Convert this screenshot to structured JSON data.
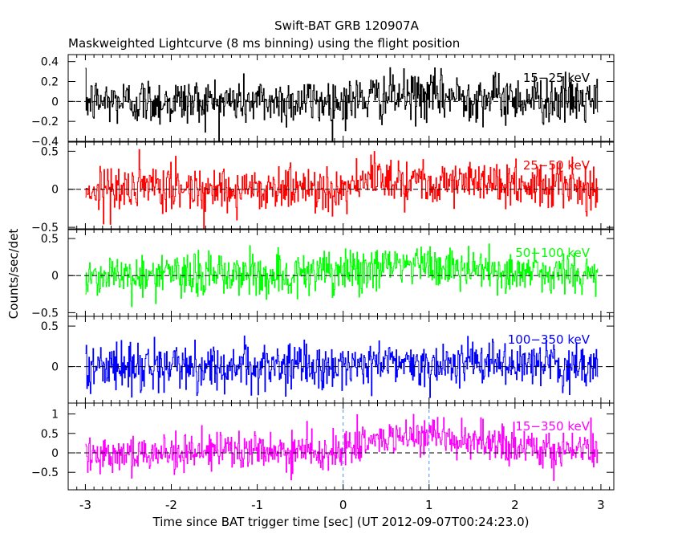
{
  "chart_data": {
    "type": "line",
    "title": "Swift-BAT GRB 120907A",
    "subtitle": "Maskweighted Lightcurve (8 ms binning) using the flight position",
    "xlabel": "Time since BAT trigger time [sec] (UT 2012-09-07T00:24:23.0)",
    "ylabel": "Counts/sec/det",
    "xlim": [
      -3.2,
      3.15
    ],
    "x_ticks": [
      -3,
      -2,
      -1,
      0,
      1,
      2,
      3
    ],
    "x_tick_labels": [
      "-3",
      "-2",
      "-1",
      "0",
      "1",
      "2",
      "3"
    ],
    "bin_width_sec": 0.008,
    "x_range_data": [
      -3.0,
      2.96
    ],
    "vertical_markers": [
      {
        "name": "T0",
        "x": 0.0,
        "color": "#4a90e2"
      },
      {
        "name": "T100 end",
        "x": 1.0,
        "color": "#4a90e2"
      }
    ],
    "panels": [
      {
        "name": "15-25 keV",
        "label": "15−25 keV",
        "color": "#000000",
        "ylim": [
          -0.4,
          0.47
        ],
        "y_ticks": [
          -0.4,
          -0.2,
          0,
          0.2,
          0.4
        ],
        "y_tick_labels": [
          "−0.4",
          "−0.2",
          "0",
          "0.2",
          "0.4"
        ],
        "noise_sigma": 0.12,
        "mean_profile": [
          {
            "x": -3.0,
            "y": 0.0
          },
          {
            "x": 0.0,
            "y": 0.0
          },
          {
            "x": 0.5,
            "y": 0.05
          },
          {
            "x": 1.5,
            "y": 0.05
          },
          {
            "x": 2.96,
            "y": 0.0
          }
        ]
      },
      {
        "name": "25-50 keV",
        "label": "25−50 keV",
        "color": "#ff0000",
        "ylim": [
          -0.52,
          0.62
        ],
        "y_ticks": [
          -0.5,
          0,
          0.5
        ],
        "y_tick_labels": [
          "−0.5",
          "0",
          "0.5"
        ],
        "noise_sigma": 0.15,
        "mean_profile": [
          {
            "x": -3.0,
            "y": 0.0
          },
          {
            "x": 0.0,
            "y": 0.02
          },
          {
            "x": 0.5,
            "y": 0.15
          },
          {
            "x": 1.0,
            "y": 0.12
          },
          {
            "x": 1.5,
            "y": 0.08
          },
          {
            "x": 2.96,
            "y": 0.02
          }
        ]
      },
      {
        "name": "50-100 keV",
        "label": "50−100 keV",
        "color": "#00ff00",
        "ylim": [
          -0.55,
          0.62
        ],
        "y_ticks": [
          -0.5,
          0,
          0.5
        ],
        "y_tick_labels": [
          "−0.5",
          "0",
          "0.5"
        ],
        "noise_sigma": 0.15,
        "mean_profile": [
          {
            "x": -3.0,
            "y": 0.0
          },
          {
            "x": 0.0,
            "y": 0.02
          },
          {
            "x": 0.5,
            "y": 0.15
          },
          {
            "x": 1.0,
            "y": 0.12
          },
          {
            "x": 1.8,
            "y": 0.06
          },
          {
            "x": 2.96,
            "y": 0.0
          }
        ]
      },
      {
        "name": "100-350 keV",
        "label": "100−350 keV",
        "color": "#0000ff",
        "ylim": [
          -0.45,
          0.62
        ],
        "y_ticks": [
          0,
          0.5
        ],
        "y_tick_labels": [
          "0",
          "0.5"
        ],
        "noise_sigma": 0.14,
        "mean_profile": [
          {
            "x": -3.0,
            "y": 0.0
          },
          {
            "x": 0.0,
            "y": 0.0
          },
          {
            "x": 0.5,
            "y": 0.05
          },
          {
            "x": 1.0,
            "y": 0.05
          },
          {
            "x": 2.96,
            "y": 0.0
          }
        ]
      },
      {
        "name": "15-350 keV",
        "label": "15−350 keV",
        "color": "#ff00ff",
        "ylim": [
          -0.95,
          1.28
        ],
        "y_ticks": [
          -0.5,
          0,
          0.5,
          1
        ],
        "y_tick_labels": [
          "−0.5",
          "0",
          "0.5",
          "1"
        ],
        "noise_sigma": 0.24,
        "mean_profile": [
          {
            "x": -3.0,
            "y": 0.0
          },
          {
            "x": 0.0,
            "y": 0.05
          },
          {
            "x": 0.4,
            "y": 0.35
          },
          {
            "x": 0.9,
            "y": 0.4
          },
          {
            "x": 1.4,
            "y": 0.3
          },
          {
            "x": 2.0,
            "y": 0.15
          },
          {
            "x": 2.96,
            "y": 0.05
          }
        ]
      }
    ]
  }
}
